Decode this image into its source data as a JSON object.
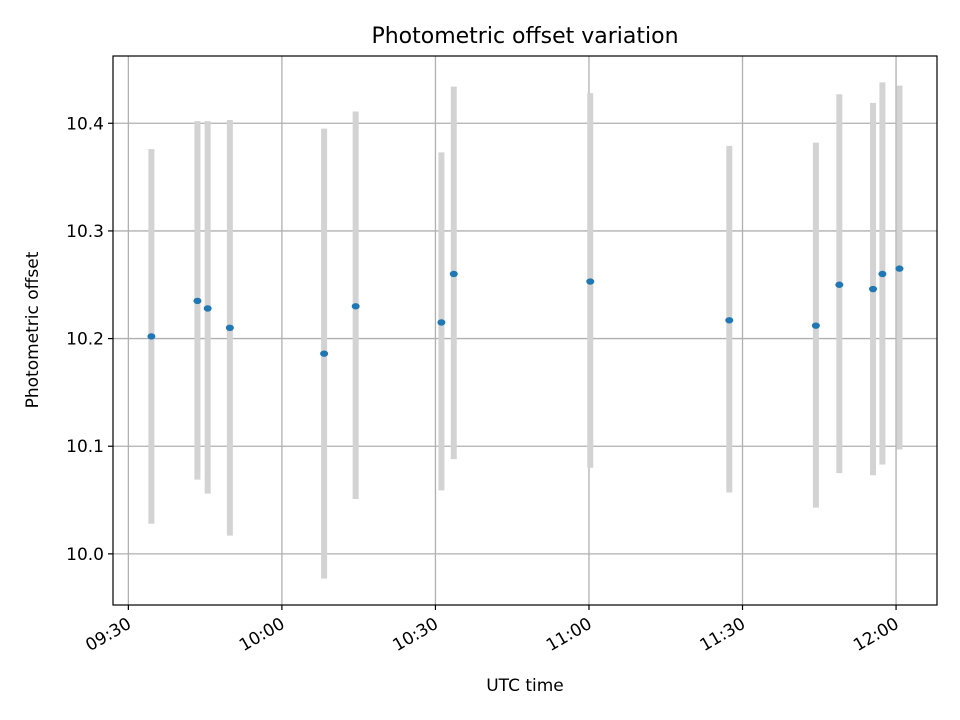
{
  "chart_data": {
    "type": "scatter",
    "title": "Photometric offset variation",
    "xlabel": "UTC time",
    "ylabel": "Photometric offset",
    "xlim": [
      "09:27",
      "12:08"
    ],
    "ylim": [
      9.9525,
      10.4625
    ],
    "x_ticks": [
      "09:30",
      "10:00",
      "10:30",
      "11:00",
      "11:30",
      "12:00"
    ],
    "y_ticks": [
      "10.0",
      "10.1",
      "10.2",
      "10.3",
      "10.4"
    ],
    "grid": true,
    "point_color": "#1f77b4",
    "errorbar_color": "#d3d3d3",
    "points": [
      {
        "t": "09:34:30",
        "y": 10.202,
        "low": 10.028,
        "high": 10.376
      },
      {
        "t": "09:43:30",
        "y": 10.235,
        "low": 10.069,
        "high": 10.402
      },
      {
        "t": "09:45:30",
        "y": 10.228,
        "low": 10.056,
        "high": 10.402
      },
      {
        "t": "09:49:50",
        "y": 10.21,
        "low": 10.017,
        "high": 10.403
      },
      {
        "t": "10:08:15",
        "y": 10.186,
        "low": 9.977,
        "high": 10.395
      },
      {
        "t": "10:14:25",
        "y": 10.23,
        "low": 10.051,
        "high": 10.411
      },
      {
        "t": "10:31:10",
        "y": 10.215,
        "low": 10.059,
        "high": 10.373
      },
      {
        "t": "10:33:35",
        "y": 10.26,
        "low": 10.088,
        "high": 10.434
      },
      {
        "t": "11:00:15",
        "y": 10.253,
        "low": 10.08,
        "high": 10.428
      },
      {
        "t": "11:27:25",
        "y": 10.217,
        "low": 10.057,
        "high": 10.379
      },
      {
        "t": "11:44:20",
        "y": 10.212,
        "low": 10.043,
        "high": 10.382
      },
      {
        "t": "11:48:55",
        "y": 10.25,
        "low": 10.075,
        "high": 10.427
      },
      {
        "t": "11:55:30",
        "y": 10.246,
        "low": 10.073,
        "high": 10.419
      },
      {
        "t": "11:57:20",
        "y": 10.26,
        "low": 10.083,
        "high": 10.438
      },
      {
        "t": "12:00:40",
        "y": 10.265,
        "low": 10.097,
        "high": 10.435
      }
    ]
  }
}
